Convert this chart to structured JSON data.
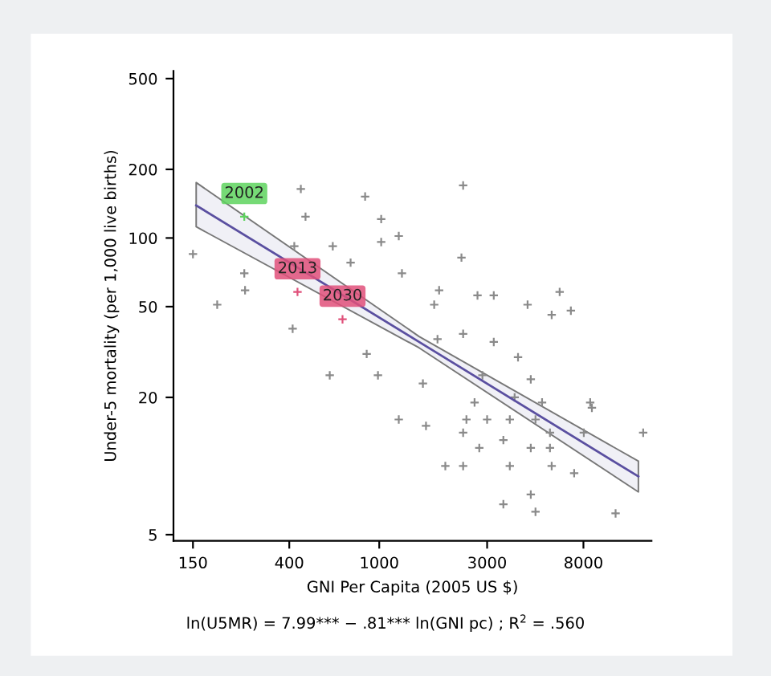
{
  "chart_data": {
    "type": "scatter",
    "xlabel": "GNI Per Capita (2005 US $)",
    "ylabel": "Under-5 mortality (per 1,000 live births)",
    "log": "xy",
    "xlim": [
      123,
      16000
    ],
    "ylim": [
      4.7,
      540
    ],
    "xticks": [
      150,
      400,
      1000,
      3000,
      8000
    ],
    "yticks": [
      5,
      20,
      50,
      100,
      200,
      500
    ],
    "grid": false,
    "legend": false,
    "marker": "cross",
    "annotations": [
      "ln(U5MR) = 7.99*** − .81*** ln(GNI pc) ; R$^{2}$ = .560"
    ],
    "series": [
      {
        "color": "#8a8a8a",
        "x": [
          150,
          253,
          255,
          192,
          414,
          450,
          472,
          421,
          866,
          1020,
          1220,
          1020,
          747,
          623,
          2350,
          2310,
          1260,
          1840,
          1750,
          2720,
          3210,
          6280,
          4530,
          5790,
          7040,
          880,
          604,
          987,
          1560,
          1810,
          2350,
          3210,
          4110,
          2860,
          2640,
          3970,
          4680,
          5250,
          8570,
          8720,
          1220,
          1610,
          2430,
          3000,
          3780,
          4910,
          5690,
          8030,
          2350,
          2770,
          3540,
          4680,
          5690,
          1960,
          2350,
          3780,
          5790,
          7280,
          14700,
          3540,
          4910,
          11100,
          4680
        ],
        "values": [
          85,
          70,
          59,
          51,
          40,
          164,
          124,
          92,
          152,
          121,
          102,
          96,
          78,
          92,
          170,
          82,
          70,
          59,
          51,
          56,
          56,
          58,
          51,
          46,
          48,
          31,
          25,
          25,
          23,
          36,
          38,
          35,
          30,
          25,
          19,
          20,
          24,
          19,
          19,
          18,
          16,
          15,
          16,
          16,
          16,
          16,
          14,
          14,
          14,
          12,
          13,
          12,
          12,
          10,
          10,
          10,
          10,
          9.3,
          14,
          6.8,
          6.3,
          6.2,
          7.5
        ]
      },
      {
        "type": "line",
        "marker": "none",
        "color": "#5a4fa0",
        "x": [
          155,
          1500,
          14000
        ],
        "values": [
          139,
          35,
          9.0
        ],
        "lower": [
          112,
          33,
          7.7
        ],
        "upper": [
          175,
          37,
          10.5
        ]
      },
      {
        "type": "scatter",
        "name": "2002",
        "color": "#5ed35e",
        "x": [
          253
        ],
        "values": [
          124
        ]
      },
      {
        "type": "scatter",
        "name": "2013",
        "color": "#e0507a",
        "x": [
          435
        ],
        "values": [
          58
        ]
      },
      {
        "type": "scatter",
        "name": "2030",
        "color": "#e0507a",
        "x": [
          688
        ],
        "values": [
          44
        ]
      }
    ]
  }
}
